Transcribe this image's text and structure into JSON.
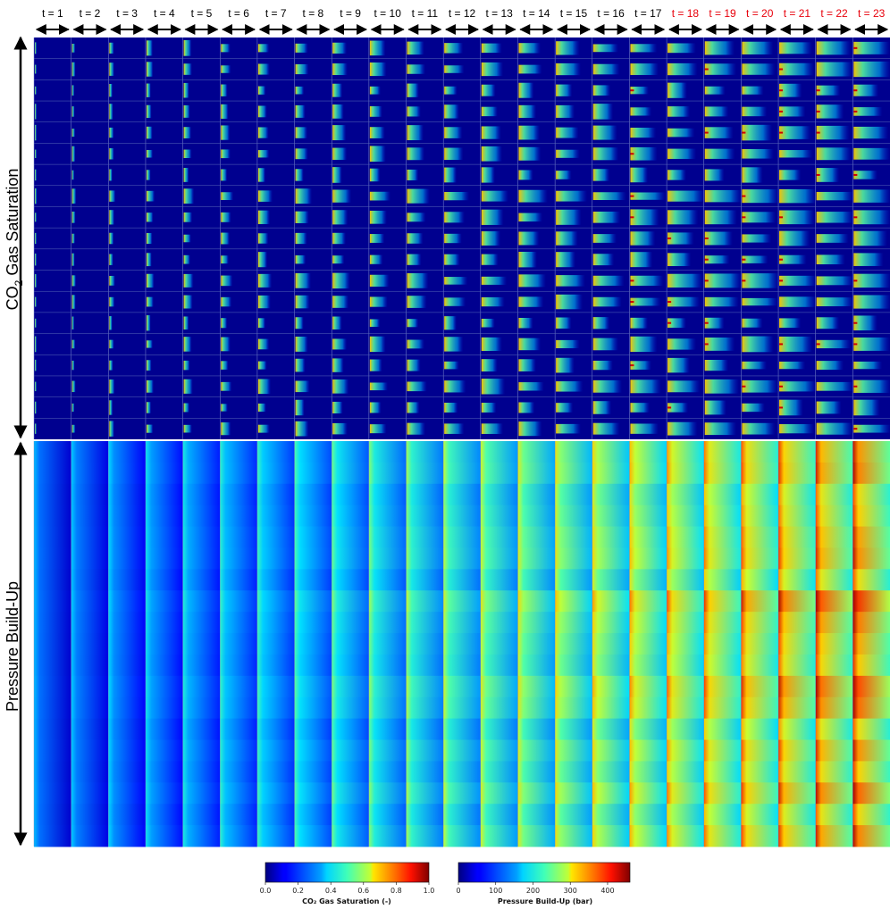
{
  "time_steps": [
    "t = 1",
    "t = 2",
    "t = 3",
    "t = 4",
    "t = 5",
    "t = 6",
    "t = 7",
    "t = 8",
    "t = 9",
    "t = 10",
    "t = 11",
    "t = 12",
    "t = 13",
    "t = 14",
    "t = 15",
    "t = 16",
    "t = 17",
    "t = 18",
    "t = 19",
    "t = 20",
    "t = 21",
    "t = 22",
    "t = 23"
  ],
  "highlight_from_index": 17,
  "colors": {
    "normal_label": "#000000",
    "highlight_label": "#e8000b"
  },
  "rows": {
    "saturation_title_prefix": "CO",
    "saturation_title_sub": "2",
    "saturation_title_suffix": " Gas Saturation",
    "pressure_title": "Pressure Build-Up"
  },
  "colorbars": {
    "saturation": {
      "ticks": [
        "0.0",
        "0.2",
        "0.4",
        "0.6",
        "0.8",
        "1.0"
      ],
      "label": "CO₂ Gas Saturation (-)"
    },
    "pressure": {
      "ticks": [
        "0",
        "100",
        "200",
        "300",
        "400"
      ],
      "label": "Pressure Build-Up (bar)"
    }
  }
}
